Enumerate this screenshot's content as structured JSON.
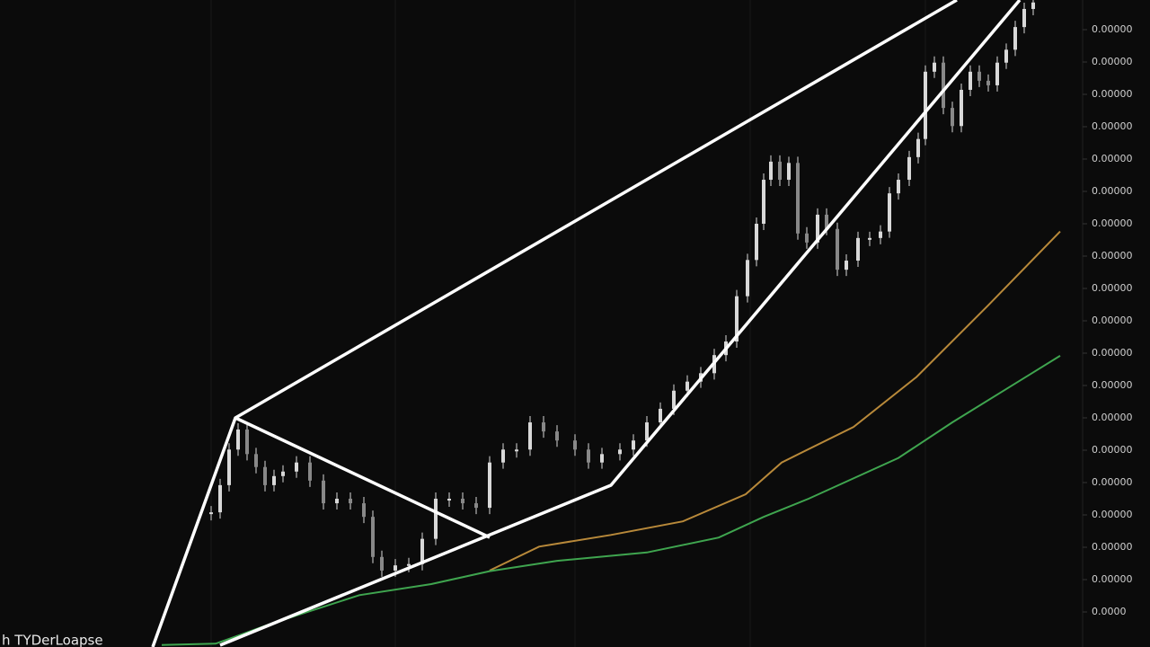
{
  "chart_data": {
    "type": "candle-line",
    "label": "h TYDerLoapse",
    "xlim": [
      0,
      1280
    ],
    "ylim": [
      0,
      100
    ],
    "yticks": [
      {
        "value": 95,
        "label": "0.00000"
      },
      {
        "value": 90,
        "label": "0.00000"
      },
      {
        "value": 85,
        "label": "0.00000"
      },
      {
        "value": 80,
        "label": "0.00000"
      },
      {
        "value": 75,
        "label": "0.00000"
      },
      {
        "value": 70,
        "label": "0.00000"
      },
      {
        "value": 65,
        "label": "0.00000"
      },
      {
        "value": 60,
        "label": "0.00000"
      },
      {
        "value": 55,
        "label": "0.00000"
      },
      {
        "value": 50,
        "label": "0.00000"
      },
      {
        "value": 45,
        "label": "0.00000"
      },
      {
        "value": 40,
        "label": "0.00000"
      },
      {
        "value": 35,
        "label": "0.00000"
      },
      {
        "value": 30,
        "label": "0.00000"
      },
      {
        "value": 25,
        "label": "0.00000"
      },
      {
        "value": 20,
        "label": "0.00000"
      },
      {
        "value": 15,
        "label": "0.00000"
      },
      {
        "value": 10,
        "label": "0.00000"
      },
      {
        "value": 5,
        "label": "0.0000"
      }
    ],
    "price": {
      "color": "#d8d8d8",
      "x": [
        235,
        245,
        255,
        265,
        275,
        285,
        295,
        305,
        315,
        330,
        345,
        360,
        375,
        390,
        405,
        415,
        425,
        440,
        455,
        470,
        485,
        500,
        515,
        530,
        545,
        560,
        575,
        590,
        605,
        620,
        640,
        655,
        670,
        690,
        705,
        720,
        735,
        750,
        765,
        780,
        795,
        808,
        820,
        832,
        842,
        850,
        858,
        868,
        878,
        888,
        898,
        910,
        920,
        932,
        942,
        955,
        968,
        980,
        990,
        1000,
        1012,
        1022,
        1030,
        1040,
        1050,
        1060,
        1070,
        1080,
        1090,
        1100,
        1110,
        1120,
        1130,
        1140,
        1150
      ],
      "values": [
        20.4,
        24.6,
        30.1,
        33.2,
        29.4,
        27.4,
        24.6,
        26.0,
        26.7,
        28.1,
        25.3,
        21.8,
        22.5,
        21.8,
        19.7,
        13.5,
        11.4,
        12.2,
        12.4,
        16.3,
        22.5,
        22.5,
        21.8,
        21.1,
        28.1,
        30.1,
        30.1,
        34.3,
        32.9,
        31.5,
        30.1,
        28.1,
        29.4,
        30.1,
        31.5,
        34.3,
        36.4,
        39.2,
        40.6,
        41.9,
        44.7,
        46.8,
        53.8,
        59.4,
        65.0,
        71.8,
        74.6,
        71.8,
        74.4,
        63.5,
        62.1,
        66.4,
        64.2,
        57.9,
        59.3,
        62.8,
        62.8,
        63.8,
        69.7,
        71.8,
        75.3,
        78.1,
        88.5,
        89.9,
        82.9,
        80.1,
        85.7,
        88.5,
        87.1,
        86.4,
        89.9,
        91.9,
        95.4,
        98.2,
        99.2
      ]
    },
    "series": [
      {
        "color": "#b8893a",
        "x": [
          545,
          600,
          680,
          760,
          830,
          870,
          950,
          1020,
          1100,
          1180
        ],
        "values": [
          11.4,
          15.1,
          16.9,
          19.0,
          23.2,
          28.1,
          33.6,
          41.3,
          52.4,
          63.8
        ]
      },
      {
        "color": "#3fa54f",
        "x": [
          180,
          240,
          300,
          400,
          480,
          545,
          620,
          720,
          800,
          850,
          900,
          1000,
          1060,
          1180
        ],
        "values": [
          -0.1,
          0.1,
          3.1,
          7.6,
          9.3,
          11.3,
          12.9,
          14.2,
          16.5,
          19.7,
          22.5,
          28.8,
          34.3,
          44.6
        ]
      }
    ]
  }
}
